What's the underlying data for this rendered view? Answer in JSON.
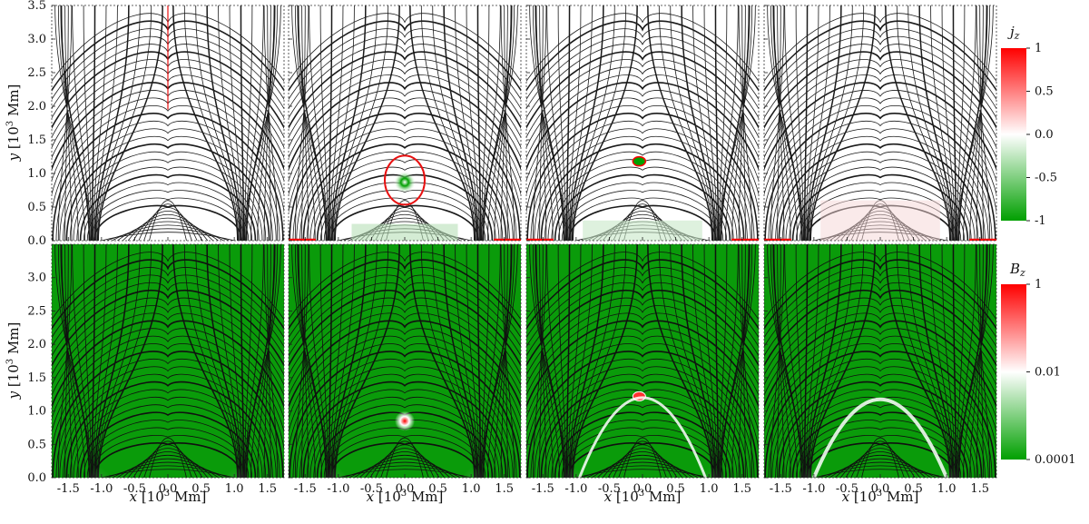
{
  "chart_data": [
    {
      "type": "heatmap",
      "panel": "top-1",
      "quantity": "jz",
      "xlim": [
        -1.75,
        1.75
      ],
      "ylim": [
        0,
        3.5
      ]
    },
    {
      "type": "heatmap",
      "panel": "top-2",
      "quantity": "jz",
      "xlim": [
        -1.75,
        1.75
      ],
      "ylim": [
        0,
        3.5
      ]
    },
    {
      "type": "heatmap",
      "panel": "top-3",
      "quantity": "jz",
      "xlim": [
        -1.75,
        1.75
      ],
      "ylim": [
        0,
        3.5
      ]
    },
    {
      "type": "heatmap",
      "panel": "top-4",
      "quantity": "jz",
      "xlim": [
        -1.75,
        1.75
      ],
      "ylim": [
        0,
        3.5
      ]
    },
    {
      "type": "heatmap",
      "panel": "bottom-1",
      "quantity": "Bz",
      "xlim": [
        -1.75,
        1.75
      ],
      "ylim": [
        0,
        3.5
      ]
    },
    {
      "type": "heatmap",
      "panel": "bottom-2",
      "quantity": "Bz",
      "xlim": [
        -1.75,
        1.75
      ],
      "ylim": [
        0,
        3.5
      ]
    },
    {
      "type": "heatmap",
      "panel": "bottom-3",
      "quantity": "Bz",
      "xlim": [
        -1.75,
        1.75
      ],
      "ylim": [
        0,
        3.5
      ]
    },
    {
      "type": "heatmap",
      "panel": "bottom-4",
      "quantity": "Bz",
      "xlim": [
        -1.75,
        1.75
      ],
      "ylim": [
        0,
        3.5
      ]
    }
  ],
  "axes": {
    "xlabel": {
      "var": "x",
      "unit_pre": "[10",
      "exp": "3",
      "unit_post": " Mm]"
    },
    "ylabel": {
      "var": "y",
      "unit_pre": "[10",
      "exp": "3",
      "unit_post": " Mm]"
    },
    "xticks": [
      -1.5,
      -1.0,
      -0.5,
      0.0,
      0.5,
      1.0,
      1.5
    ],
    "xtick_labels": [
      "-1.5",
      "-1.0",
      "-0.5",
      "0.0",
      "0.5",
      "1.0",
      "1.5"
    ],
    "yticks_top": [
      0.0,
      0.5,
      1.0,
      1.5,
      2.0,
      2.5,
      3.0,
      3.5
    ],
    "ytick_labels_top": [
      "0.0",
      "0.5",
      "1.0",
      "1.5",
      "2.0",
      "2.5",
      "3.0",
      "3.5"
    ],
    "yticks_bottom": [
      0.0,
      0.5,
      1.0,
      1.5,
      2.0,
      2.5,
      3.0
    ],
    "ytick_labels_bottom": [
      "0.0",
      "0.5",
      "1.0",
      "1.5",
      "2.0",
      "2.5",
      "3.0"
    ]
  },
  "colorbars": {
    "jz": {
      "label_var": "j",
      "label_sub": "z",
      "ticks": [
        1,
        0.5,
        0.0,
        -0.5,
        -1
      ],
      "tick_labels": [
        "1",
        "0.5",
        "0.0",
        "-0.5",
        "-1"
      ],
      "range": [
        -1,
        1
      ],
      "scale": "linear",
      "colors": {
        "low": "#00a000",
        "mid": "#ffffff",
        "high": "#ff0000"
      }
    },
    "Bz": {
      "label_var": "B",
      "label_sub": "z",
      "ticks": [
        1,
        0.01,
        0.0001
      ],
      "tick_labels": [
        "1",
        "0.01",
        "0.0001"
      ],
      "range": [
        0.0001,
        1
      ],
      "scale": "log",
      "colors": {
        "low": "#00a000",
        "mid": "#ffffff",
        "high": "#ff0000"
      }
    }
  },
  "style": {
    "background_green": "#0a9b0a",
    "fieldline_color": "#1a1a1a",
    "current_red": "#e81010"
  }
}
